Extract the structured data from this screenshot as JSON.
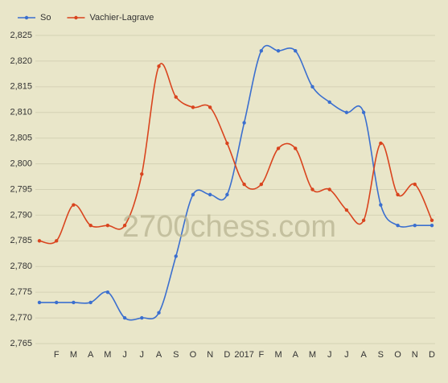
{
  "chart_data": {
    "type": "line",
    "watermark": "2700chess.com",
    "categories": [
      null,
      "F",
      "M",
      "A",
      "M",
      "J",
      "J",
      "A",
      "S",
      "O",
      "N",
      "D",
      "2017",
      "F",
      "M",
      "A",
      "M",
      "J",
      "J",
      "A",
      "S",
      "O",
      "N",
      "D"
    ],
    "series": [
      {
        "name": "So",
        "color": "#3b6fcf",
        "values": [
          2773,
          2773,
          2773,
          2773,
          2775,
          2770,
          2770,
          2771,
          2782,
          2794,
          2794,
          2794,
          2808,
          2822,
          2822,
          2822,
          2815,
          2812,
          2810,
          2810,
          2792,
          2788,
          2788,
          2788
        ]
      },
      {
        "name": "Vachier-Lagrave",
        "color": "#d9441e",
        "values": [
          2785,
          2785,
          2792,
          2788,
          2788,
          2788,
          2798,
          2819,
          2813,
          2811,
          2811,
          2804,
          2796,
          2796,
          2803,
          2803,
          2795,
          2795,
          2791,
          2789,
          2804,
          2794,
          2796,
          2789
        ]
      }
    ],
    "ylim": [
      2765,
      2825
    ],
    "yticks": [
      {
        "value": 2765,
        "label": "2,765"
      },
      {
        "value": 2770,
        "label": "2,770"
      },
      {
        "value": 2775,
        "label": "2,775"
      },
      {
        "value": 2780,
        "label": "2,780"
      },
      {
        "value": 2785,
        "label": "2,785"
      },
      {
        "value": 2790,
        "label": "2,790"
      },
      {
        "value": 2795,
        "label": "2,795"
      },
      {
        "value": 2800,
        "label": "2,800"
      },
      {
        "value": 2805,
        "label": "2,805"
      },
      {
        "value": 2810,
        "label": "2,810"
      },
      {
        "value": 2815,
        "label": "2,815"
      },
      {
        "value": 2820,
        "label": "2,820"
      },
      {
        "value": 2825,
        "label": "2,825"
      }
    ],
    "grid": true,
    "legend": "top-left"
  }
}
